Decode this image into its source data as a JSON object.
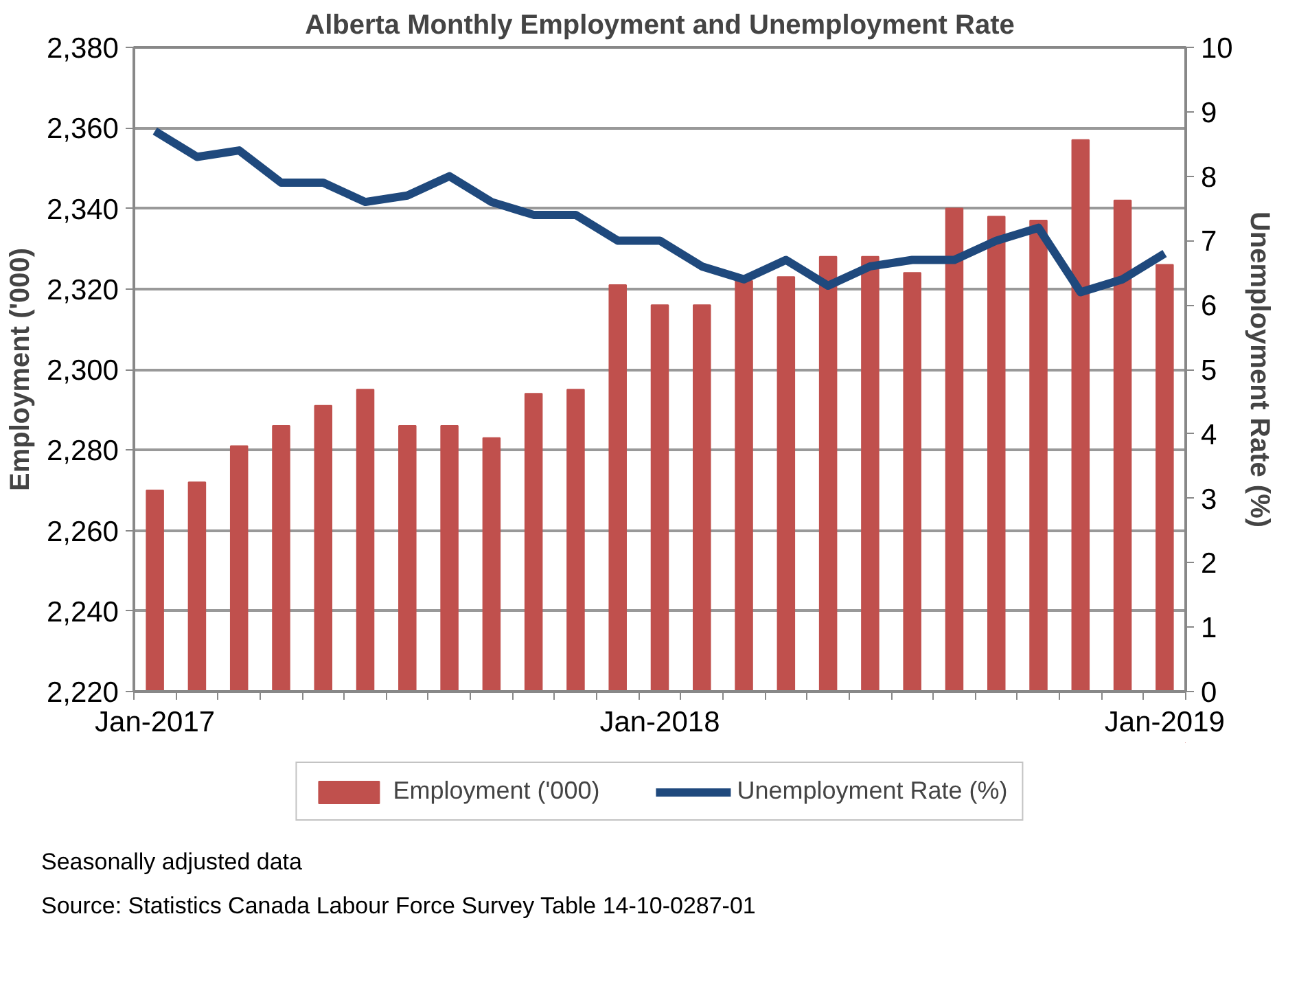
{
  "chart_data": {
    "type": "bar",
    "title": "Alberta Monthly Employment and Unemployment Rate",
    "ylabel": "Employment ('000)",
    "y2label": "Unemployment Rate (%)",
    "categories": [
      "Jan-2017",
      null,
      null,
      null,
      null,
      null,
      null,
      null,
      null,
      null,
      null,
      null,
      "Jan-2018",
      null,
      null,
      null,
      null,
      null,
      null,
      null,
      null,
      null,
      null,
      null,
      "Jan-2019"
    ],
    "series": [
      {
        "name": "Employment ('000)",
        "color": "#c0504d",
        "values": [
          2270,
          2272,
          2281,
          2286,
          2291,
          2295,
          2286,
          2286,
          2283,
          2294,
          2295,
          2321,
          2316,
          2316,
          2322,
          2323,
          2328,
          2328,
          2324,
          2340,
          2338,
          2337,
          2357,
          2342,
          2326
        ]
      },
      {
        "name": "Unemployment Rate (%)",
        "type": "line",
        "axis": "y2",
        "color": "#1f497d",
        "values": [
          8.7,
          8.3,
          8.4,
          7.9,
          7.9,
          7.6,
          7.7,
          8.0,
          7.6,
          7.4,
          7.4,
          7.0,
          7.0,
          6.6,
          6.4,
          6.7,
          6.3,
          6.6,
          6.7,
          6.7,
          7.0,
          7.2,
          6.2,
          6.4,
          6.8
        ]
      }
    ],
    "ylim": [
      2220,
      2380
    ],
    "yticks": [
      {
        "value": 2220,
        "label": "2,220"
      },
      {
        "value": 2240,
        "label": "2,240"
      },
      {
        "value": 2260,
        "label": "2,260"
      },
      {
        "value": 2280,
        "label": "2,280"
      },
      {
        "value": 2300,
        "label": "2,300"
      },
      {
        "value": 2320,
        "label": "2,320"
      },
      {
        "value": 2340,
        "label": "2,340"
      },
      {
        "value": 2360,
        "label": "2,360"
      },
      {
        "value": 2380,
        "label": "2,380"
      }
    ],
    "y2lim": [
      0,
      10
    ],
    "y2ticks": [
      0,
      1,
      2,
      3,
      4,
      5,
      6,
      7,
      8,
      9,
      10
    ],
    "grid": "y",
    "legend": "bottom",
    "annotations": [
      "Seasonally adjusted data",
      "Source: Statistics Canada Labour Force Survey Table 14-10-0287-01"
    ]
  }
}
